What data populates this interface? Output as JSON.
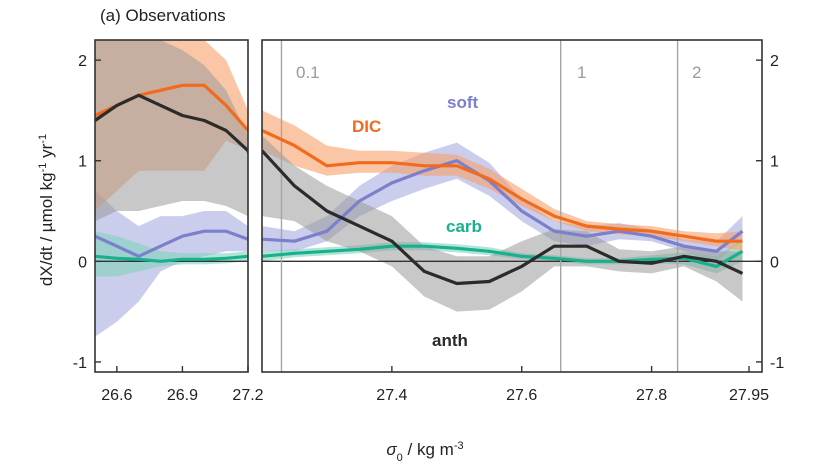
{
  "panel_title": "(a) Observations",
  "chart_data": {
    "type": "line",
    "title": "(a) Observations",
    "xlabel_parts": [
      "σ",
      "0",
      " / kg m",
      "-3"
    ],
    "ylabel_parts": [
      "dX/dt / µmol kg",
      "-1",
      " yr",
      "-1"
    ],
    "ylim": [
      -1.1,
      2.2
    ],
    "y_ticks": [
      -1,
      0,
      1,
      2
    ],
    "panels": [
      {
        "name": "left",
        "xlim": [
          26.5,
          27.2
        ],
        "x_ticks": [
          26.6,
          26.9,
          27.2
        ],
        "x_tick_labels": [
          "26.6",
          "26.9",
          "27.2"
        ]
      },
      {
        "name": "right",
        "xlim": [
          27.2,
          27.97
        ],
        "x_ticks": [
          27.4,
          27.6,
          27.8,
          27.95
        ],
        "x_tick_labels": [
          "27.4",
          "27.6",
          "27.8",
          "27.95"
        ]
      }
    ],
    "vertical_lines": [
      {
        "label": "0.1",
        "x": 27.23
      },
      {
        "label": "1",
        "x": 27.66
      },
      {
        "label": "2",
        "x": 27.84
      }
    ],
    "series": [
      {
        "name": "DIC",
        "color": "#f26b1d",
        "band_color": "#f7a06b",
        "x": [
          26.5,
          26.6,
          26.7,
          26.8,
          26.9,
          27.0,
          27.1,
          27.2,
          27.25,
          27.3,
          27.35,
          27.4,
          27.45,
          27.5,
          27.55,
          27.6,
          27.65,
          27.7,
          27.75,
          27.8,
          27.85,
          27.9,
          27.94
        ],
        "y": [
          1.45,
          1.55,
          1.65,
          1.7,
          1.75,
          1.75,
          1.55,
          1.3,
          1.15,
          0.95,
          0.98,
          0.98,
          0.95,
          0.95,
          0.82,
          0.62,
          0.45,
          0.35,
          0.32,
          0.3,
          0.25,
          0.2,
          0.2
        ],
        "lower": [
          0.5,
          0.7,
          0.9,
          0.9,
          0.9,
          0.9,
          1.2,
          1.1,
          0.95,
          0.85,
          0.88,
          0.88,
          0.85,
          0.85,
          0.72,
          0.55,
          0.4,
          0.3,
          0.27,
          0.25,
          0.2,
          0.15,
          0.1
        ],
        "upper": [
          2.2,
          2.2,
          2.2,
          2.2,
          2.2,
          2.2,
          2.0,
          1.5,
          1.35,
          1.15,
          1.1,
          1.1,
          1.08,
          1.06,
          0.92,
          0.72,
          0.52,
          0.4,
          0.37,
          0.35,
          0.3,
          0.28,
          0.3
        ]
      },
      {
        "name": "soft",
        "color": "#7b7fcc",
        "band_color": "#a9abe0",
        "x": [
          26.5,
          26.6,
          26.7,
          26.8,
          26.9,
          27.0,
          27.1,
          27.2,
          27.25,
          27.3,
          27.35,
          27.4,
          27.45,
          27.5,
          27.55,
          27.6,
          27.65,
          27.7,
          27.75,
          27.8,
          27.85,
          27.9,
          27.94
        ],
        "y": [
          0.25,
          0.15,
          0.05,
          0.15,
          0.25,
          0.3,
          0.3,
          0.22,
          0.2,
          0.3,
          0.6,
          0.78,
          0.9,
          1.0,
          0.8,
          0.5,
          0.3,
          0.25,
          0.3,
          0.25,
          0.15,
          0.1,
          0.3
        ],
        "lower": [
          -0.75,
          -0.6,
          -0.4,
          -0.1,
          0.0,
          0.05,
          0.1,
          0.1,
          0.1,
          0.2,
          0.45,
          0.6,
          0.72,
          0.82,
          0.65,
          0.4,
          0.2,
          0.15,
          0.22,
          0.2,
          0.1,
          0.0,
          0.2
        ],
        "upper": [
          0.7,
          0.5,
          0.35,
          0.45,
          0.45,
          0.5,
          0.5,
          0.35,
          0.3,
          0.45,
          0.75,
          0.95,
          1.08,
          1.18,
          0.98,
          0.62,
          0.4,
          0.35,
          0.38,
          0.32,
          0.22,
          0.2,
          0.45
        ]
      },
      {
        "name": "carb",
        "color": "#19b08e",
        "band_color": "#7fd2bd",
        "x": [
          26.5,
          26.6,
          26.7,
          26.8,
          26.9,
          27.0,
          27.1,
          27.2,
          27.25,
          27.3,
          27.35,
          27.4,
          27.45,
          27.5,
          27.55,
          27.6,
          27.65,
          27.7,
          27.75,
          27.8,
          27.85,
          27.9,
          27.94
        ],
        "y": [
          0.05,
          0.03,
          0.02,
          0.0,
          0.02,
          0.02,
          0.03,
          0.05,
          0.08,
          0.1,
          0.12,
          0.15,
          0.15,
          0.13,
          0.1,
          0.05,
          0.03,
          0.0,
          0.0,
          0.02,
          0.03,
          -0.05,
          0.1
        ],
        "lower": [
          -0.15,
          -0.15,
          -0.1,
          -0.05,
          -0.03,
          -0.03,
          -0.02,
          0.0,
          0.04,
          0.06,
          0.08,
          0.11,
          0.11,
          0.09,
          0.06,
          0.02,
          0.0,
          -0.03,
          -0.03,
          -0.02,
          -0.03,
          -0.12,
          0.0
        ],
        "upper": [
          0.3,
          0.25,
          0.18,
          0.1,
          0.08,
          0.08,
          0.08,
          0.1,
          0.12,
          0.14,
          0.16,
          0.19,
          0.19,
          0.17,
          0.14,
          0.08,
          0.06,
          0.03,
          0.03,
          0.06,
          0.09,
          0.05,
          0.22
        ]
      },
      {
        "name": "anth",
        "color": "#2b2b2b",
        "band_color": "#9a9a9a",
        "x": [
          26.5,
          26.6,
          26.7,
          26.8,
          26.9,
          27.0,
          27.1,
          27.2,
          27.25,
          27.3,
          27.35,
          27.4,
          27.45,
          27.5,
          27.55,
          27.6,
          27.65,
          27.7,
          27.75,
          27.8,
          27.85,
          27.9,
          27.94
        ],
        "y": [
          1.4,
          1.55,
          1.65,
          1.55,
          1.45,
          1.4,
          1.3,
          1.1,
          0.75,
          0.5,
          0.35,
          0.2,
          -0.1,
          -0.22,
          -0.2,
          -0.05,
          0.15,
          0.15,
          0.0,
          -0.02,
          0.05,
          0.0,
          -0.12
        ],
        "lower": [
          0.4,
          0.5,
          0.5,
          0.55,
          0.6,
          0.6,
          0.55,
          0.45,
          0.4,
          0.2,
          0.1,
          -0.05,
          -0.35,
          -0.5,
          -0.48,
          -0.3,
          -0.05,
          -0.05,
          -0.1,
          -0.12,
          -0.05,
          -0.2,
          -0.4
        ],
        "upper": [
          2.2,
          2.2,
          2.2,
          2.2,
          2.1,
          1.95,
          1.7,
          1.25,
          0.95,
          0.75,
          0.6,
          0.45,
          0.15,
          0.05,
          0.05,
          0.2,
          0.32,
          0.3,
          0.12,
          0.1,
          0.15,
          0.1,
          0.1
        ]
      }
    ]
  }
}
